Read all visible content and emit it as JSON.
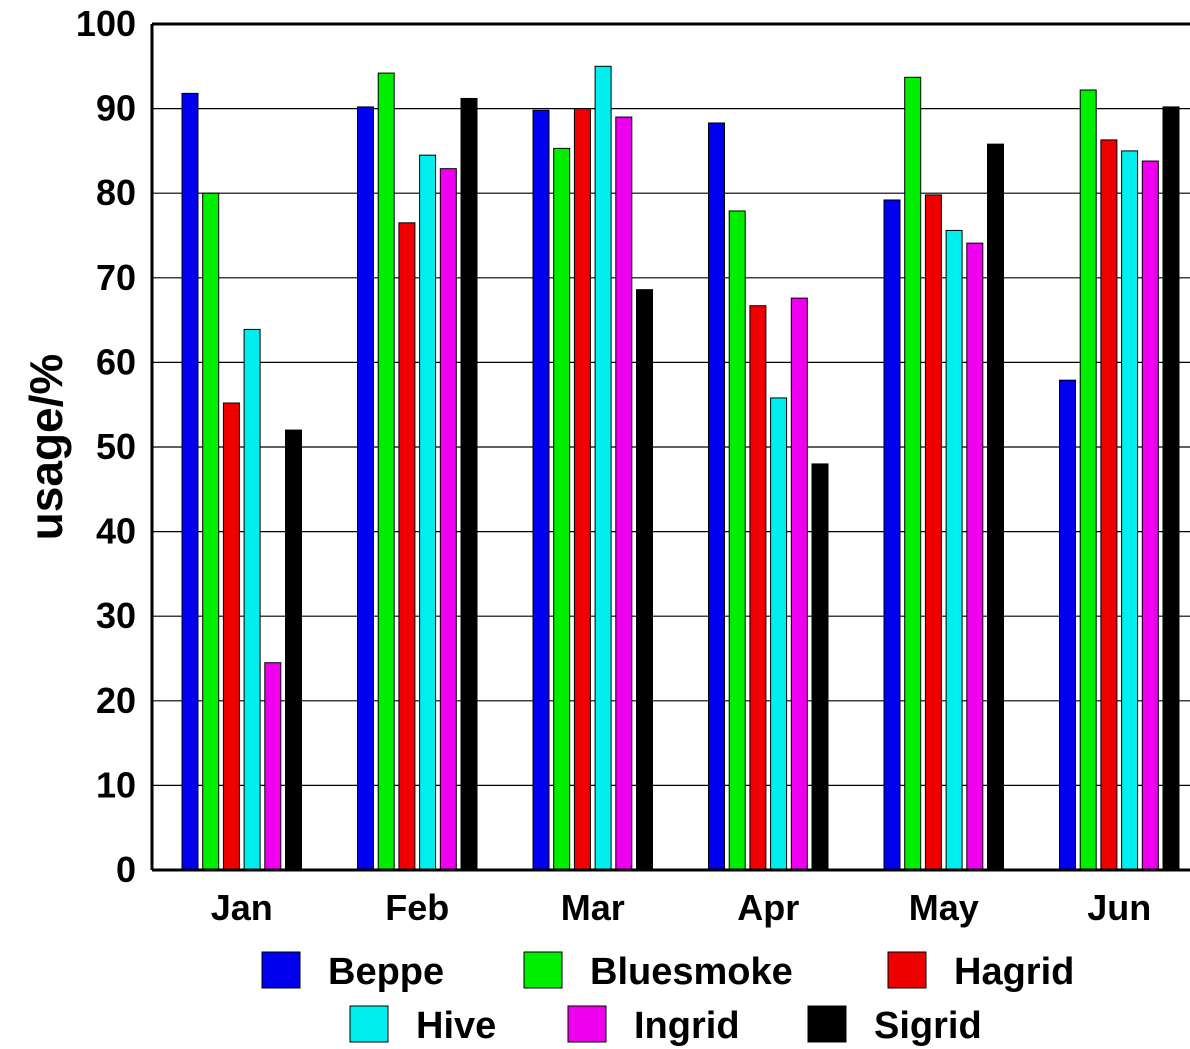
{
  "chart_data": {
    "type": "bar",
    "title": "",
    "xlabel": "",
    "ylabel": "usage/%",
    "ylim": [
      0,
      100
    ],
    "yticks": [
      0,
      10,
      20,
      30,
      40,
      50,
      60,
      70,
      80,
      90,
      100
    ],
    "grid": "horizontal",
    "legend_position": "bottom",
    "categories": [
      "Jan",
      "Feb",
      "Mar",
      "Apr",
      "May",
      "Jun"
    ],
    "series": [
      {
        "name": "Beppe",
        "color": "#0000ee",
        "values": [
          91.8,
          90.2,
          89.8,
          88.3,
          79.2,
          57.9
        ]
      },
      {
        "name": "Bluesmoke",
        "color": "#00ee00",
        "values": [
          80.0,
          94.2,
          85.3,
          77.9,
          93.7,
          92.2
        ]
      },
      {
        "name": "Hagrid",
        "color": "#ee0000",
        "values": [
          55.2,
          76.5,
          90.0,
          66.7,
          79.8,
          86.3
        ]
      },
      {
        "name": "Hive",
        "color": "#00eeee",
        "values": [
          63.9,
          84.5,
          95.0,
          55.8,
          75.6,
          85.0
        ]
      },
      {
        "name": "Ingrid",
        "color": "#ee00ee",
        "values": [
          24.5,
          82.9,
          89.0,
          67.6,
          74.1,
          83.8
        ]
      },
      {
        "name": "Sigrid",
        "color": "#000000",
        "values": [
          52.0,
          91.2,
          68.6,
          48.0,
          85.8,
          90.2
        ]
      }
    ]
  }
}
